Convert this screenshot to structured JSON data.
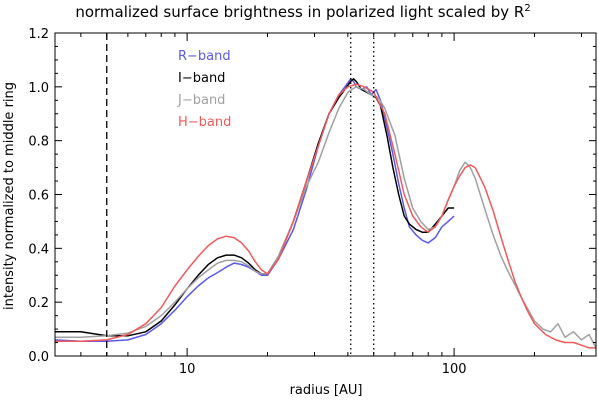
{
  "chart_data": {
    "type": "line",
    "title_main": "normalized surface brightness in polarized light scaled by R",
    "title_sup": "2",
    "xlabel": "radius [AU]",
    "ylabel": "intensity normalized to middle ring",
    "xscale": "log",
    "xlim": [
      3.2,
      340
    ],
    "ylim": [
      0,
      1.2
    ],
    "x_ticklabels": [
      {
        "v": 10,
        "label": "10"
      },
      {
        "v": 100,
        "label": "100"
      }
    ],
    "y_ticklabels": [
      {
        "v": 0.0,
        "label": "0.0"
      },
      {
        "v": 0.2,
        "label": "0.2"
      },
      {
        "v": 0.4,
        "label": "0.4"
      },
      {
        "v": 0.6,
        "label": "0.6"
      },
      {
        "v": 0.8,
        "label": "0.8"
      },
      {
        "v": 1.0,
        "label": "1.0"
      },
      {
        "v": 1.2,
        "label": "1.2"
      }
    ],
    "grid": false,
    "legend_position": "top-left",
    "vlines": [
      {
        "x": 5.0,
        "style": "dashed"
      },
      {
        "x": 41.0,
        "style": "dotted"
      },
      {
        "x": 50.0,
        "style": "dotted"
      }
    ],
    "series": [
      {
        "name": "R−band",
        "color": "#5a5ae8",
        "x": [
          3.2,
          4,
          5,
          6,
          7,
          8,
          9,
          10,
          11,
          12,
          13,
          14,
          15,
          16,
          17,
          18,
          19,
          20,
          22,
          25,
          28,
          31,
          34,
          37,
          39,
          41,
          42,
          43,
          45,
          47,
          49,
          51,
          53,
          56,
          59,
          62,
          65,
          68,
          72,
          76,
          80,
          85,
          90,
          95,
          100
        ],
        "y": [
          0.06,
          0.055,
          0.055,
          0.06,
          0.08,
          0.12,
          0.17,
          0.22,
          0.26,
          0.29,
          0.31,
          0.33,
          0.345,
          0.34,
          0.33,
          0.315,
          0.3,
          0.3,
          0.36,
          0.47,
          0.62,
          0.78,
          0.9,
          0.97,
          1.0,
          1.03,
          1.02,
          1.0,
          0.99,
          1.0,
          0.97,
          0.99,
          0.95,
          0.85,
          0.75,
          0.64,
          0.55,
          0.48,
          0.45,
          0.43,
          0.42,
          0.44,
          0.48,
          0.5,
          0.52
        ]
      },
      {
        "name": "I−band",
        "color": "#000000",
        "x": [
          3.2,
          4,
          5,
          6,
          7,
          8,
          9,
          10,
          11,
          12,
          13,
          14,
          15,
          16,
          17,
          18,
          19,
          20,
          22,
          25,
          28,
          31,
          34,
          37,
          39,
          41,
          42,
          43,
          45,
          47,
          49,
          51,
          53,
          56,
          59,
          62,
          65,
          68,
          72,
          76,
          80,
          85,
          90,
          95,
          100
        ],
        "y": [
          0.09,
          0.09,
          0.075,
          0.075,
          0.09,
          0.13,
          0.19,
          0.25,
          0.3,
          0.34,
          0.365,
          0.375,
          0.375,
          0.365,
          0.345,
          0.32,
          0.305,
          0.305,
          0.37,
          0.5,
          0.65,
          0.79,
          0.9,
          0.96,
          0.99,
          1.02,
          1.03,
          1.02,
          0.99,
          0.98,
          0.97,
          0.96,
          0.93,
          0.82,
          0.7,
          0.6,
          0.52,
          0.49,
          0.47,
          0.46,
          0.46,
          0.49,
          0.52,
          0.55,
          0.55
        ]
      },
      {
        "name": "J−band",
        "color": "#a0a0a0",
        "x": [
          3.2,
          4,
          5,
          6,
          7,
          8,
          9,
          10,
          11,
          12,
          13,
          14,
          15,
          16,
          17,
          18,
          19,
          20,
          22,
          25,
          28,
          31,
          34,
          37,
          40,
          43,
          46,
          49,
          52,
          55,
          60,
          65,
          70,
          75,
          80,
          85,
          90,
          95,
          100,
          105,
          110,
          115,
          120,
          130,
          140,
          150,
          160,
          170,
          180,
          190,
          200,
          215,
          230,
          245,
          260,
          280,
          300,
          320,
          340
        ],
        "y": [
          0.07,
          0.07,
          0.075,
          0.085,
          0.11,
          0.15,
          0.2,
          0.25,
          0.29,
          0.32,
          0.345,
          0.355,
          0.355,
          0.35,
          0.335,
          0.315,
          0.305,
          0.305,
          0.37,
          0.5,
          0.63,
          0.72,
          0.83,
          0.92,
          0.98,
          1.0,
          0.99,
          0.97,
          0.96,
          0.92,
          0.82,
          0.66,
          0.55,
          0.5,
          0.47,
          0.48,
          0.52,
          0.58,
          0.63,
          0.69,
          0.72,
          0.7,
          0.66,
          0.55,
          0.45,
          0.37,
          0.31,
          0.26,
          0.21,
          0.17,
          0.13,
          0.1,
          0.09,
          0.12,
          0.07,
          0.09,
          0.06,
          0.08,
          0.03
        ]
      },
      {
        "name": "H−band",
        "color": "#f05a5a",
        "x": [
          3.2,
          4,
          5,
          6,
          7,
          8,
          9,
          10,
          11,
          12,
          13,
          14,
          15,
          16,
          17,
          18,
          19,
          20,
          22,
          25,
          28,
          31,
          34,
          37,
          40,
          43,
          46,
          50,
          55,
          60,
          65,
          70,
          75,
          80,
          85,
          90,
          95,
          100,
          105,
          110,
          115,
          120,
          130,
          140,
          150,
          160,
          170,
          180,
          190,
          200,
          220,
          240,
          260,
          280,
          300,
          320,
          340
        ],
        "y": [
          0.055,
          0.055,
          0.06,
          0.08,
          0.12,
          0.18,
          0.26,
          0.32,
          0.37,
          0.41,
          0.435,
          0.445,
          0.44,
          0.42,
          0.39,
          0.35,
          0.32,
          0.305,
          0.36,
          0.5,
          0.65,
          0.78,
          0.9,
          0.97,
          1.0,
          1.01,
          1.0,
          0.98,
          0.9,
          0.75,
          0.6,
          0.52,
          0.48,
          0.46,
          0.48,
          0.52,
          0.58,
          0.63,
          0.67,
          0.7,
          0.71,
          0.7,
          0.63,
          0.54,
          0.44,
          0.35,
          0.27,
          0.21,
          0.16,
          0.12,
          0.08,
          0.06,
          0.05,
          0.05,
          0.04,
          0.03,
          0.03
        ]
      }
    ]
  }
}
